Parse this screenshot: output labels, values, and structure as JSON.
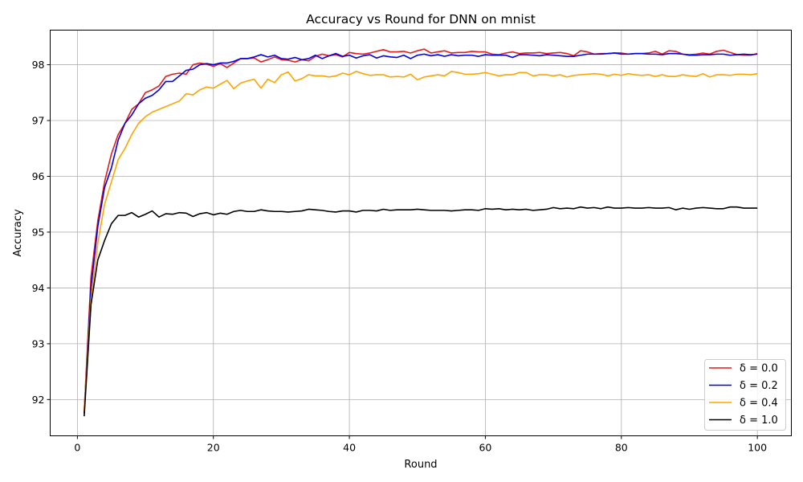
{
  "chart_data": {
    "type": "line",
    "title": "Accuracy vs Round for DNN on mnist",
    "xlabel": "Round",
    "ylabel": "Accuracy",
    "xlim": [
      -4,
      105
    ],
    "ylim": [
      91.35,
      98.62
    ],
    "xticks": [
      0,
      20,
      40,
      60,
      80,
      100
    ],
    "yticks": [
      92,
      93,
      94,
      95,
      96,
      97,
      98
    ],
    "grid": true,
    "legend_position": "lower-right",
    "x": [
      1,
      2,
      3,
      4,
      5,
      6,
      7,
      8,
      9,
      10,
      11,
      12,
      13,
      14,
      15,
      16,
      17,
      18,
      19,
      20,
      21,
      22,
      23,
      24,
      25,
      26,
      27,
      28,
      29,
      30,
      31,
      32,
      33,
      34,
      35,
      36,
      37,
      38,
      39,
      40,
      41,
      42,
      43,
      44,
      45,
      46,
      47,
      48,
      49,
      50,
      51,
      52,
      53,
      54,
      55,
      56,
      57,
      58,
      59,
      60,
      61,
      62,
      63,
      64,
      65,
      66,
      67,
      68,
      69,
      70,
      71,
      72,
      73,
      74,
      75,
      76,
      77,
      78,
      79,
      80,
      81,
      82,
      83,
      84,
      85,
      86,
      87,
      88,
      89,
      90,
      91,
      92,
      93,
      94,
      95,
      96,
      97,
      98,
      99,
      100
    ],
    "series": [
      {
        "name": "δ = 0.0",
        "color": "#e41a1c",
        "values": [
          91.8,
          94.2,
          95.2,
          95.9,
          96.4,
          96.75,
          96.95,
          97.2,
          97.3,
          97.5,
          97.55,
          97.62,
          97.79,
          97.83,
          97.85,
          97.83,
          98.0,
          98.03,
          98.01,
          97.97,
          98.02,
          97.95,
          98.03,
          98.11,
          98.11,
          98.12,
          98.05,
          98.09,
          98.14,
          98.09,
          98.08,
          98.05,
          98.09,
          98.07,
          98.15,
          98.19,
          98.16,
          98.18,
          98.14,
          98.22,
          98.2,
          98.19,
          98.21,
          98.24,
          98.27,
          98.23,
          98.23,
          98.24,
          98.21,
          98.25,
          98.28,
          98.21,
          98.23,
          98.25,
          98.21,
          98.22,
          98.22,
          98.24,
          98.23,
          98.23,
          98.19,
          98.18,
          98.21,
          98.23,
          98.2,
          98.21,
          98.21,
          98.22,
          98.2,
          98.21,
          98.22,
          98.2,
          98.16,
          98.25,
          98.23,
          98.19,
          98.2,
          98.2,
          98.21,
          98.21,
          98.19,
          98.2,
          98.2,
          98.21,
          98.24,
          98.19,
          98.25,
          98.24,
          98.19,
          98.18,
          98.19,
          98.21,
          98.19,
          98.24,
          98.26,
          98.22,
          98.18,
          98.17,
          98.17,
          98.2
        ]
      },
      {
        "name": "δ = 0.2",
        "color": "#0000e6",
        "values": [
          91.75,
          94.0,
          95.1,
          95.8,
          96.15,
          96.65,
          96.95,
          97.1,
          97.3,
          97.4,
          97.45,
          97.55,
          97.7,
          97.7,
          97.8,
          97.9,
          97.92,
          98.0,
          98.02,
          98.0,
          98.03,
          98.03,
          98.06,
          98.11,
          98.11,
          98.14,
          98.18,
          98.14,
          98.17,
          98.11,
          98.1,
          98.13,
          98.09,
          98.11,
          98.17,
          98.11,
          98.16,
          98.2,
          98.15,
          98.17,
          98.12,
          98.16,
          98.18,
          98.12,
          98.16,
          98.14,
          98.13,
          98.17,
          98.11,
          98.17,
          98.19,
          98.16,
          98.18,
          98.15,
          98.18,
          98.16,
          98.17,
          98.17,
          98.15,
          98.18,
          98.17,
          98.17,
          98.17,
          98.13,
          98.18,
          98.18,
          98.17,
          98.16,
          98.18,
          98.17,
          98.16,
          98.15,
          98.15,
          98.17,
          98.19,
          98.19,
          98.19,
          98.2,
          98.21,
          98.19,
          98.19,
          98.2,
          98.2,
          98.19,
          98.19,
          98.18,
          98.2,
          98.2,
          98.19,
          98.17,
          98.17,
          98.18,
          98.18,
          98.19,
          98.19,
          98.17,
          98.18,
          98.19,
          98.18,
          98.19
        ]
      },
      {
        "name": "δ = 0.4",
        "color": "#ffa500",
        "values": [
          91.8,
          93.8,
          94.8,
          95.5,
          95.9,
          96.3,
          96.5,
          96.75,
          96.95,
          97.07,
          97.15,
          97.2,
          97.25,
          97.3,
          97.35,
          97.48,
          97.46,
          97.55,
          97.6,
          97.58,
          97.65,
          97.72,
          97.57,
          97.67,
          97.71,
          97.74,
          97.58,
          97.74,
          97.68,
          97.82,
          97.87,
          97.71,
          97.75,
          97.82,
          97.8,
          97.8,
          97.78,
          97.8,
          97.85,
          97.82,
          97.88,
          97.84,
          97.81,
          97.82,
          97.82,
          97.78,
          97.79,
          97.78,
          97.83,
          97.73,
          97.78,
          97.8,
          97.82,
          97.8,
          97.88,
          97.86,
          97.83,
          97.83,
          97.84,
          97.86,
          97.83,
          97.8,
          97.82,
          97.82,
          97.86,
          97.86,
          97.8,
          97.82,
          97.82,
          97.8,
          97.82,
          97.78,
          97.81,
          97.82,
          97.83,
          97.84,
          97.83,
          97.8,
          97.83,
          97.81,
          97.84,
          97.82,
          97.81,
          97.82,
          97.79,
          97.82,
          97.79,
          97.79,
          97.82,
          97.8,
          97.79,
          97.84,
          97.78,
          97.82,
          97.82,
          97.81,
          97.83,
          97.83,
          97.82,
          97.84
        ]
      },
      {
        "name": "δ = 1.0",
        "color": "#000000",
        "values": [
          91.7,
          93.7,
          94.5,
          94.85,
          95.15,
          95.3,
          95.3,
          95.35,
          95.27,
          95.32,
          95.38,
          95.27,
          95.33,
          95.32,
          95.35,
          95.34,
          95.28,
          95.33,
          95.35,
          95.31,
          95.34,
          95.32,
          95.37,
          95.39,
          95.37,
          95.37,
          95.4,
          95.38,
          95.37,
          95.37,
          95.36,
          95.37,
          95.38,
          95.41,
          95.4,
          95.39,
          95.37,
          95.36,
          95.38,
          95.38,
          95.36,
          95.39,
          95.39,
          95.38,
          95.41,
          95.39,
          95.4,
          95.4,
          95.4,
          95.41,
          95.4,
          95.39,
          95.39,
          95.39,
          95.38,
          95.39,
          95.4,
          95.4,
          95.39,
          95.42,
          95.41,
          95.42,
          95.4,
          95.41,
          95.4,
          95.41,
          95.39,
          95.4,
          95.41,
          95.44,
          95.42,
          95.43,
          95.42,
          95.45,
          95.43,
          95.44,
          95.42,
          95.45,
          95.43,
          95.43,
          95.44,
          95.43,
          95.43,
          95.44,
          95.43,
          95.43,
          95.44,
          95.4,
          95.43,
          95.41,
          95.43,
          95.44,
          95.43,
          95.42,
          95.42,
          95.45,
          95.45,
          95.43,
          95.43,
          95.43
        ]
      }
    ]
  }
}
